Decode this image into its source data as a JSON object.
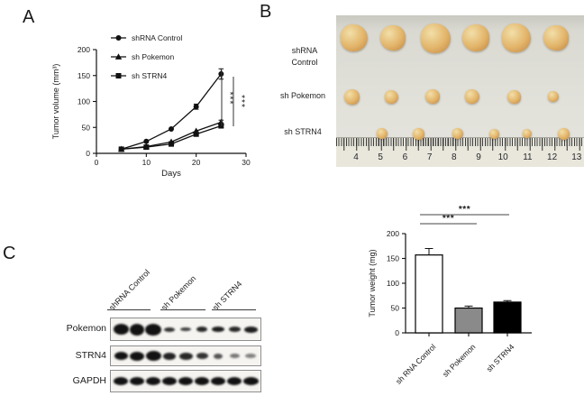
{
  "figure": {
    "panel_a_letter": "A",
    "panel_b_letter": "B",
    "panel_c_letter": "C"
  },
  "chart_data": [
    {
      "id": "tumor_volume_line",
      "type": "line",
      "title": "",
      "xlabel": "Days",
      "ylabel": "Tumor volume (mm³)",
      "xlim": [
        0,
        30
      ],
      "ylim": [
        0,
        200
      ],
      "xticks": [
        0,
        10,
        20,
        30
      ],
      "yticks": [
        0,
        50,
        100,
        150,
        200
      ],
      "grid": false,
      "legend_position": "top-center",
      "x": [
        5,
        10,
        15,
        20,
        25
      ],
      "series": [
        {
          "name": "shRNA Control",
          "marker": "circle",
          "values": [
            8,
            23,
            47,
            90,
            153
          ],
          "yerr": [
            0,
            0,
            0,
            5,
            10
          ]
        },
        {
          "name": "sh Pokemon",
          "marker": "triangle",
          "values": [
            8,
            13,
            22,
            43,
            60
          ],
          "yerr": [
            0,
            0,
            0,
            0,
            4
          ]
        },
        {
          "name": "sh STRN4",
          "marker": "square",
          "values": [
            8,
            12,
            18,
            37,
            53
          ],
          "yerr": [
            0,
            0,
            0,
            0,
            0
          ]
        }
      ],
      "significance": [
        {
          "between": [
            "shRNA Control",
            "sh Pokemon"
          ],
          "label": "***"
        },
        {
          "between": [
            "shRNA Control",
            "sh STRN4"
          ],
          "label": "***"
        }
      ]
    },
    {
      "id": "tumor_weight_bar",
      "type": "bar",
      "title": "",
      "xlabel": "",
      "ylabel": "Tumor weight (mg)",
      "ylim": [
        0,
        200
      ],
      "yticks": [
        0,
        50,
        100,
        150,
        200
      ],
      "categories": [
        "sh RNA Control",
        "sh Pokemon",
        "sh STRN4"
      ],
      "values": [
        157,
        50,
        62
      ],
      "errors": [
        13,
        4,
        3
      ],
      "bar_colors": [
        "#ffffff",
        "#8a8a8a",
        "#000000"
      ],
      "significance": [
        {
          "from": 0,
          "to": 1,
          "label": "***"
        },
        {
          "from": 0,
          "to": 2,
          "label": "***"
        }
      ]
    }
  ],
  "photo_panel": {
    "row_labels": [
      "shRNA\nControl",
      "sh Pokemon",
      "sh STRN4"
    ],
    "ruler_numbers": [
      "4",
      "5",
      "6",
      "7",
      "8",
      "9",
      "10",
      "11",
      "12",
      "13"
    ],
    "tumor_colors": {
      "light": "#f2dfa9",
      "mid": "#e2b469",
      "dark": "#c08441"
    },
    "tumor_rows": [
      {
        "y": 25,
        "tumors": [
          {
            "x": 20,
            "d": 30
          },
          {
            "x": 63,
            "d": 28
          },
          {
            "x": 110,
            "d": 33
          },
          {
            "x": 155,
            "d": 30
          },
          {
            "x": 200,
            "d": 32
          },
          {
            "x": 244,
            "d": 28
          }
        ]
      },
      {
        "y": 90,
        "tumors": [
          {
            "x": 17,
            "d": 17
          },
          {
            "x": 61,
            "d": 15
          },
          {
            "x": 107,
            "d": 16
          },
          {
            "x": 151,
            "d": 16
          },
          {
            "x": 197,
            "d": 15
          },
          {
            "x": 241,
            "d": 12
          }
        ]
      },
      {
        "y": 131,
        "tumors": [
          {
            "x": 51,
            "d": 12
          },
          {
            "x": 91,
            "d": 13
          },
          {
            "x": 135,
            "d": 12
          },
          {
            "x": 175,
            "d": 11
          },
          {
            "x": 212,
            "d": 10
          },
          {
            "x": 252,
            "d": 13
          }
        ]
      }
    ]
  },
  "blot_panel": {
    "group_labels": [
      "shRNA Control",
      "sh Pokemon",
      "sh STRN4"
    ],
    "rows": [
      {
        "label": "Pokemon",
        "bands": [
          {
            "w": 17,
            "h": 12,
            "o": 1
          },
          {
            "w": 16,
            "h": 13,
            "o": 1
          },
          {
            "w": 18,
            "h": 13,
            "o": 1
          },
          {
            "w": 12,
            "h": 5,
            "o": 0.85
          },
          {
            "w": 12,
            "h": 4,
            "o": 0.8
          },
          {
            "w": 12,
            "h": 6,
            "o": 0.9
          },
          {
            "w": 14,
            "h": 6,
            "o": 0.95
          },
          {
            "w": 13,
            "h": 6,
            "o": 0.9
          },
          {
            "w": 15,
            "h": 7,
            "o": 0.95
          }
        ]
      },
      {
        "label": "STRN4",
        "bands": [
          {
            "w": 15,
            "h": 9,
            "o": 1
          },
          {
            "w": 16,
            "h": 10,
            "o": 1
          },
          {
            "w": 17,
            "h": 11,
            "o": 1
          },
          {
            "w": 14,
            "h": 8,
            "o": 0.92
          },
          {
            "w": 15,
            "h": 8,
            "o": 0.9
          },
          {
            "w": 13,
            "h": 7,
            "o": 0.85
          },
          {
            "w": 10,
            "h": 6,
            "o": 0.7
          },
          {
            "w": 11,
            "h": 5,
            "o": 0.55
          },
          {
            "w": 12,
            "h": 5,
            "o": 0.5
          }
        ]
      },
      {
        "label": "GAPDH",
        "bands": [
          {
            "w": 16,
            "h": 9,
            "o": 1
          },
          {
            "w": 16,
            "h": 9,
            "o": 1
          },
          {
            "w": 16,
            "h": 9,
            "o": 1
          },
          {
            "w": 16,
            "h": 9,
            "o": 1
          },
          {
            "w": 16,
            "h": 9,
            "o": 1
          },
          {
            "w": 16,
            "h": 9,
            "o": 1
          },
          {
            "w": 16,
            "h": 9,
            "o": 1
          },
          {
            "w": 16,
            "h": 9,
            "o": 1
          },
          {
            "w": 17,
            "h": 9,
            "o": 1
          }
        ]
      }
    ]
  }
}
